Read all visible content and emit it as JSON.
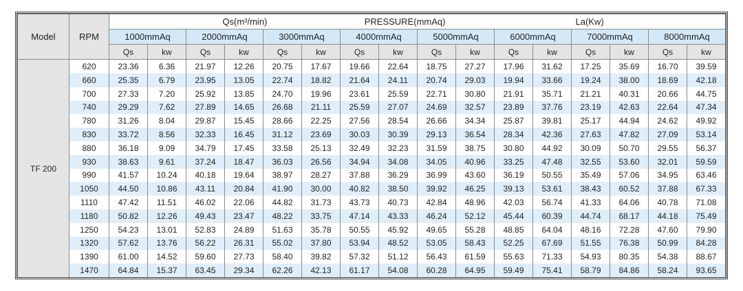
{
  "table": {
    "header": {
      "model": "Model",
      "rpm": "RPM",
      "groups": [
        "Qs(m³/min)",
        "PRESSURE(mmAq)",
        "La(Kw)"
      ],
      "pressures": [
        "1000mmAq",
        "2000mmAq",
        "3000mmAq",
        "4000mmAq",
        "5000mmAq",
        "6000mmAq",
        "7000mmAq",
        "8000mmAq"
      ],
      "subheaders": [
        "Qs",
        "kw",
        "Qs",
        "kw",
        "Qs",
        "kw",
        "Qs",
        "kw",
        "Qs",
        "kw",
        "Qs",
        "kw",
        "Qs",
        "kw",
        "Qs",
        "kw"
      ]
    },
    "model_name": "TF 200",
    "rows": [
      [
        "620",
        "23.36",
        "6.36",
        "21.97",
        "12.26",
        "20.75",
        "17.67",
        "19.66",
        "22.64",
        "18.75",
        "27.27",
        "17.96",
        "31.62",
        "17.25",
        "35.69",
        "16.70",
        "39.59"
      ],
      [
        "660",
        "25.35",
        "6.79",
        "23.95",
        "13.05",
        "22.74",
        "18.82",
        "21.64",
        "24.11",
        "20.74",
        "29.03",
        "19.94",
        "33.66",
        "19.24",
        "38.00",
        "18.69",
        "42.18"
      ],
      [
        "700",
        "27.33",
        "7.20",
        "25.92",
        "13.85",
        "24.70",
        "19.96",
        "23.61",
        "25.59",
        "22.71",
        "30.80",
        "21.91",
        "35.71",
        "21.21",
        "40.31",
        "20.66",
        "44.75"
      ],
      [
        "740",
        "29.29",
        "7.62",
        "27.89",
        "14.65",
        "26.68",
        "21.11",
        "25.59",
        "27.07",
        "24.69",
        "32.57",
        "23.89",
        "37.76",
        "23.19",
        "42.63",
        "22.64",
        "47.34"
      ],
      [
        "780",
        "31.26",
        "8.04",
        "29.87",
        "15.45",
        "28.66",
        "22.25",
        "27.56",
        "28.54",
        "26.66",
        "34.34",
        "25.87",
        "39.81",
        "25.17",
        "44.94",
        "24.62",
        "49.92"
      ],
      [
        "830",
        "33.72",
        "8.56",
        "32.33",
        "16.45",
        "31.12",
        "23.69",
        "30.03",
        "30.39",
        "29.13",
        "36.54",
        "28.34",
        "42.36",
        "27.63",
        "47.82",
        "27.09",
        "53.14"
      ],
      [
        "880",
        "36.18",
        "9.09",
        "34.79",
        "17.45",
        "33.58",
        "25.13",
        "32.49",
        "32.23",
        "31.59",
        "38.75",
        "30.80",
        "44.92",
        "30.09",
        "50.70",
        "29.55",
        "56.37"
      ],
      [
        "930",
        "38.63",
        "9.61",
        "37.24",
        "18.47",
        "36.03",
        "26.56",
        "34.94",
        "34.08",
        "34.05",
        "40.96",
        "33.25",
        "47.48",
        "32.55",
        "53.60",
        "32.01",
        "59.59"
      ],
      [
        "990",
        "41.57",
        "10.24",
        "40.18",
        "19.64",
        "38.97",
        "28.27",
        "37.88",
        "36.29",
        "36.99",
        "43.60",
        "36.19",
        "50.55",
        "35.49",
        "57.06",
        "34.95",
        "63.46"
      ],
      [
        "1050",
        "44.50",
        "10.86",
        "43.11",
        "20.84",
        "41.90",
        "30.00",
        "40.82",
        "38.50",
        "39.92",
        "46.25",
        "39.13",
        "53.61",
        "38.43",
        "60.52",
        "37.88",
        "67.33"
      ],
      [
        "1110",
        "47.42",
        "11.51",
        "46.02",
        "22.06",
        "44.82",
        "31.73",
        "43.73",
        "40.73",
        "42.84",
        "48.96",
        "42.03",
        "56.74",
        "41.33",
        "64.06",
        "40.78",
        "71.08"
      ],
      [
        "1180",
        "50.82",
        "12.26",
        "49.43",
        "23.47",
        "48.22",
        "33.75",
        "47.14",
        "43.33",
        "46.24",
        "52.12",
        "45.44",
        "60.39",
        "44.74",
        "68.17",
        "44.18",
        "75.49"
      ],
      [
        "1250",
        "54.23",
        "13.01",
        "52.83",
        "24.89",
        "51.63",
        "35.78",
        "50.55",
        "45.92",
        "49.65",
        "55.28",
        "48.85",
        "64.04",
        "48.16",
        "72.28",
        "47.60",
        "79.90"
      ],
      [
        "1320",
        "57.62",
        "13.76",
        "56.22",
        "26.31",
        "55.02",
        "37.80",
        "53.94",
        "48.52",
        "53.05",
        "58.43",
        "52.25",
        "67.69",
        "51.55",
        "76.38",
        "50.99",
        "84.28"
      ],
      [
        "1390",
        "61.00",
        "14.52",
        "59.60",
        "27.73",
        "58.40",
        "39.82",
        "57.32",
        "51.12",
        "56.43",
        "61.59",
        "55.63",
        "71.33",
        "54.93",
        "80.35",
        "54.38",
        "88.67"
      ],
      [
        "1470",
        "64.84",
        "15.37",
        "63.45",
        "29.34",
        "62.26",
        "42.13",
        "61.17",
        "54.08",
        "60.28",
        "64.95",
        "59.49",
        "75.41",
        "58.79",
        "84.86",
        "58.24",
        "93.65"
      ]
    ]
  }
}
